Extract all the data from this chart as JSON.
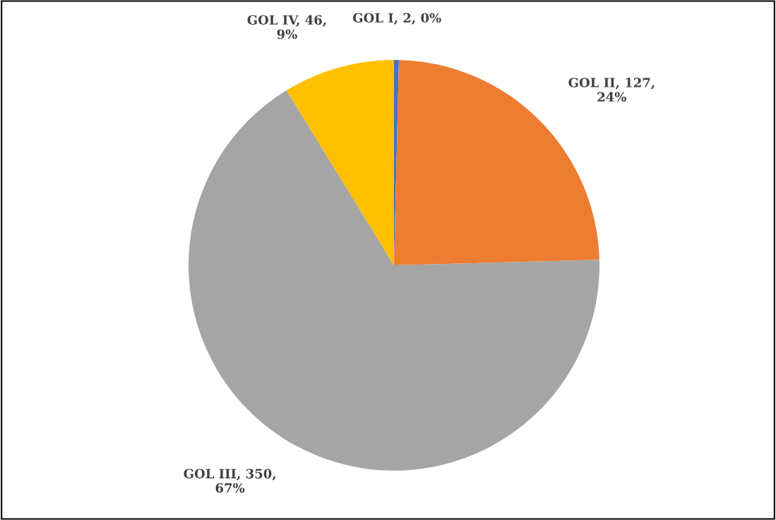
{
  "chart_data": {
    "type": "pie",
    "categories": [
      "GOL I",
      "GOL II",
      "GOL III",
      "GOL IV"
    ],
    "values": [
      2,
      127,
      350,
      46
    ],
    "colors": [
      "#4472c4",
      "#ed7d31",
      "#a5a5a5",
      "#ffc000"
    ],
    "value_labels": [
      "2, 0%",
      "127,\n24%",
      "350,\n67%",
      "46,\n9%"
    ],
    "legend": false
  }
}
